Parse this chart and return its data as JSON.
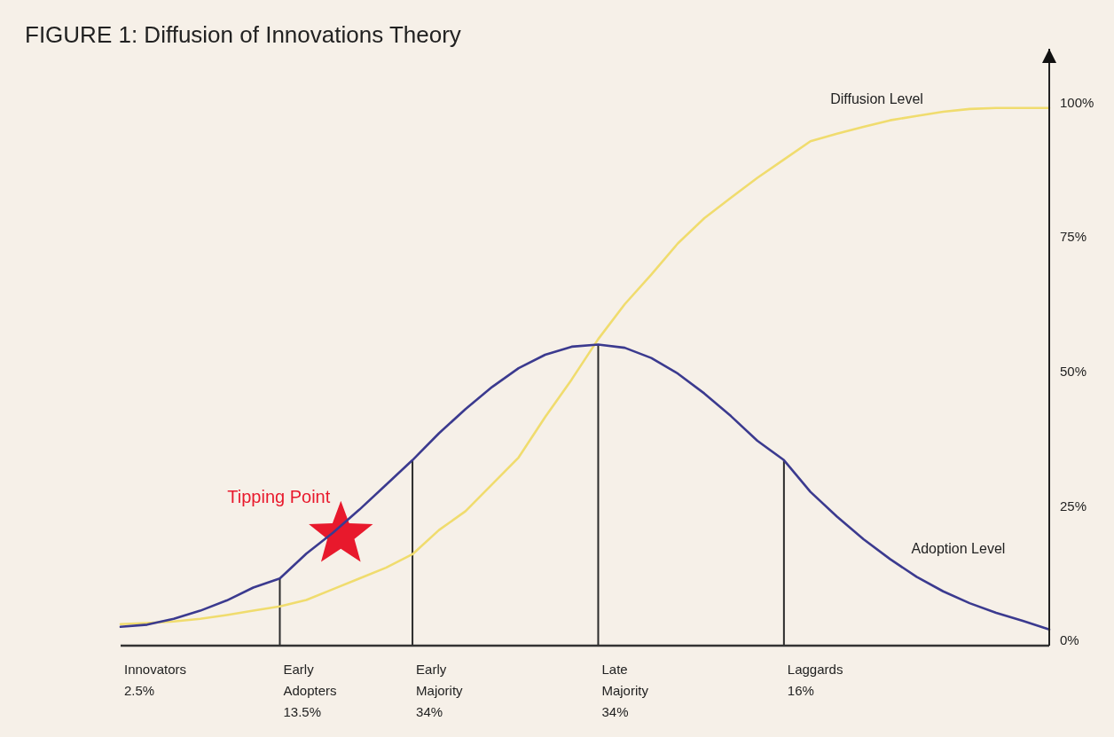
{
  "chart_data": {
    "type": "line",
    "title": "FIGURE 1: Diffusion of Innovations Theory",
    "categories": [
      null,
      null,
      null,
      null,
      null,
      null,
      null,
      null,
      null,
      null,
      null,
      null,
      null,
      null,
      null,
      null,
      null,
      null,
      null,
      null,
      null,
      null,
      null,
      null,
      null,
      null,
      null,
      null,
      null,
      null,
      null,
      null,
      null,
      null,
      null,
      null
    ],
    "series": [
      {
        "name": "Diffusion Level",
        "color": "#f0dc6e",
        "values": [
          3,
          3.2,
          3.5,
          4,
          4.7,
          5.5,
          6.3,
          7.5,
          9.5,
          11.5,
          13.5,
          16,
          20.5,
          24,
          29,
          34,
          41.5,
          48.5,
          56,
          62.5,
          68,
          73.8,
          78.5,
          82.3,
          86,
          89.4,
          92.8,
          94.2,
          95.5,
          96.7,
          97.5,
          98.3,
          98.8,
          99,
          99,
          99
        ]
      },
      {
        "name": "Adoption Level",
        "color": "#3b3a8f",
        "values": [
          2.5,
          2.9,
          4,
          5.5,
          7.4,
          9.8,
          11.5,
          16.1,
          20,
          24.3,
          28.9,
          33.5,
          38.5,
          43,
          47.1,
          50.6,
          53.1,
          54.6,
          55,
          54.4,
          52.5,
          49.6,
          45.9,
          41.7,
          37.1,
          33.5,
          27.6,
          23,
          18.8,
          15.1,
          11.8,
          9.1,
          6.9,
          5.1,
          3.6,
          2
        ]
      }
    ],
    "ylim": [
      -1,
      110
    ],
    "yticks": [
      {
        "value": 0,
        "label": "0%"
      },
      {
        "value": 25,
        "label": "25%"
      },
      {
        "value": 50,
        "label": "50%"
      },
      {
        "value": 75,
        "label": "75%"
      },
      {
        "value": 100,
        "label": "100%"
      }
    ],
    "tick_labels": "y",
    "grid": false,
    "legend": false,
    "annotations": [
      "Tipping Point",
      "Innovators\n2.5%",
      "Early\nAdopters\n13.5%",
      "Early\nMajority\n34%",
      "Late\nMajority\n34%",
      "Laggards\n16%"
    ]
  }
}
